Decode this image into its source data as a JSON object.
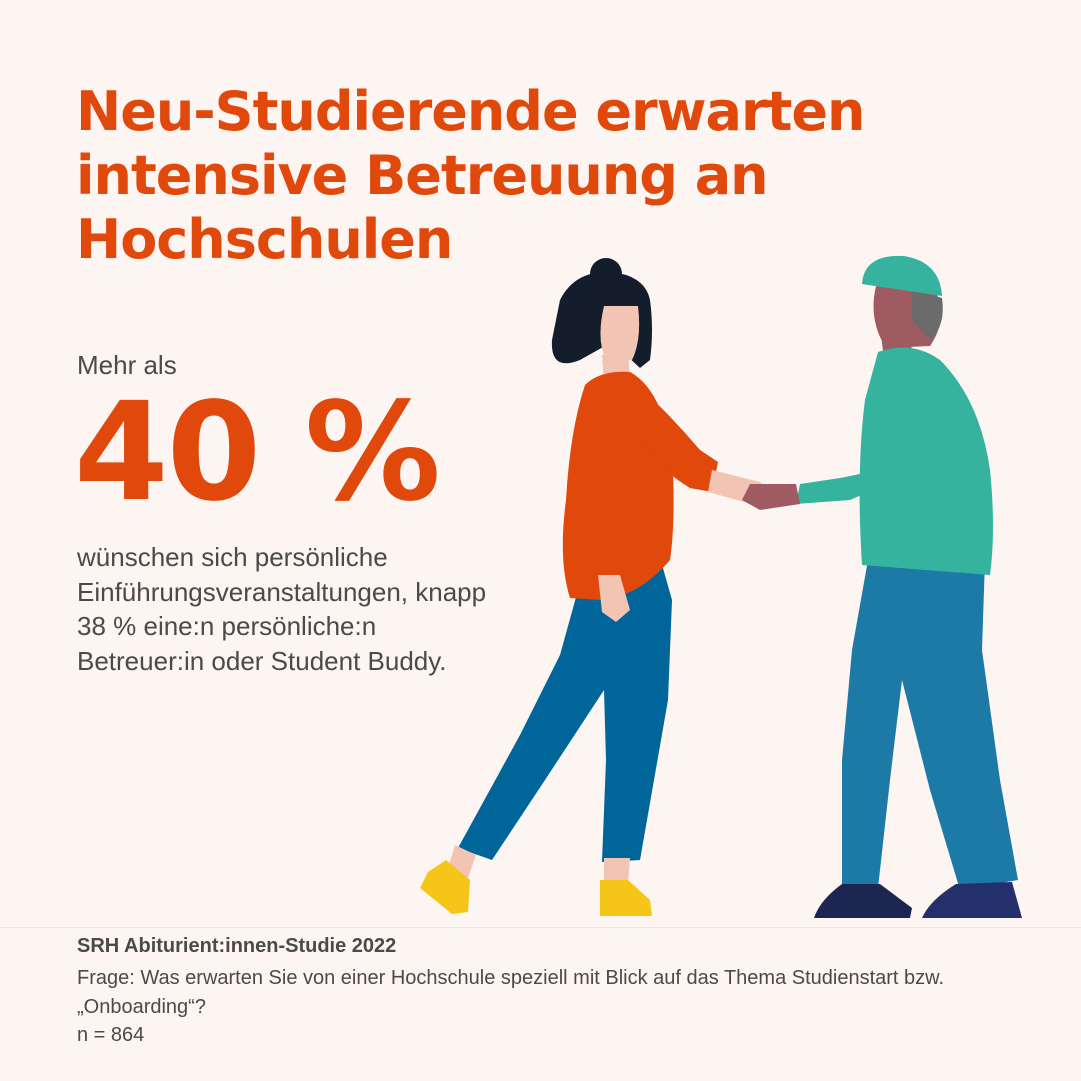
{
  "headline": "Neu-Studierende erwarten intensive Betreuung an Hochschulen",
  "intro": "Mehr als",
  "big_number": "40 %",
  "body_text": "wünschen sich persönliche Einführungsveranstaltungen, knapp 38 % eine:n persönliche:n Betreuer:in oder Student Buddy.",
  "footer": {
    "source": "SRH Abiturient:innen-Studie 2022",
    "question": "Frage: Was erwarten Sie von einer Hochschule speziell mit Blick auf das Thema Studienstart bzw. „Onboarding“?",
    "sample": "n = 864"
  },
  "colors": {
    "background": "#fcf5f1",
    "accent": "#e0480c",
    "text": "#4a4a4a",
    "teal": "#35b39f",
    "blue": "#006699",
    "yellow": "#f5c518"
  },
  "illustration": {
    "icon": "two-people-handshake-icon"
  }
}
